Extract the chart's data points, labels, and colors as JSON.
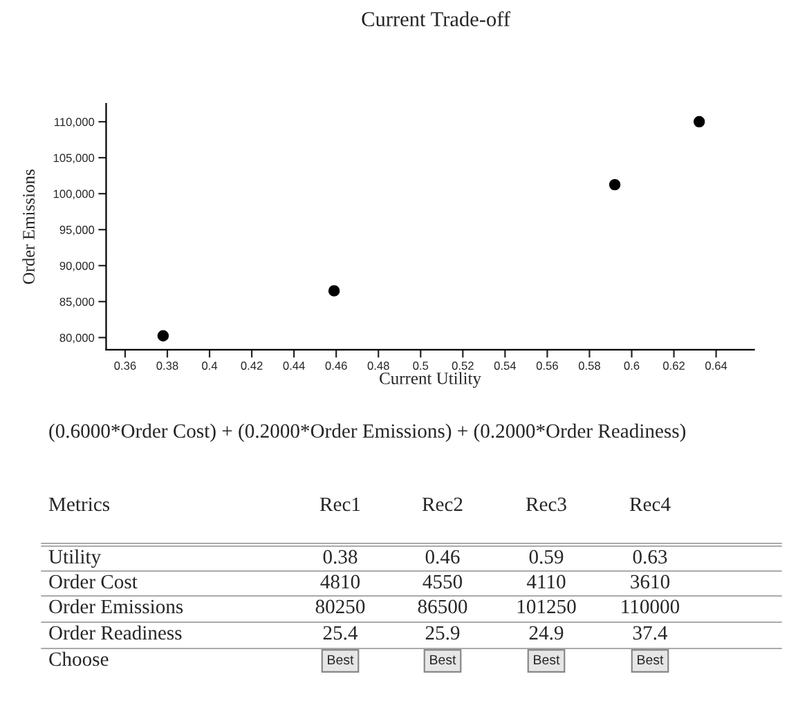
{
  "chart_data": {
    "type": "scatter",
    "title": "Current Trade-off",
    "xlabel": "Current Utility",
    "ylabel": "Order Emissions",
    "x": [
      0.378,
      0.459,
      0.592,
      0.632
    ],
    "values": [
      80250,
      86500,
      101250,
      110000
    ],
    "color": "#000000",
    "marker": "circle",
    "grid": false,
    "legend": false,
    "xlim": [
      0.351,
      0.658
    ],
    "ylim": [
      78300,
      112500
    ],
    "xticks": [
      0.36,
      0.38,
      0.4,
      0.42,
      0.44,
      0.46,
      0.48,
      0.5,
      0.52,
      0.54,
      0.56,
      0.58,
      0.6,
      0.62,
      0.64
    ],
    "yticks": [
      {
        "value": 80000,
        "label": "80,000"
      },
      {
        "value": 85000,
        "label": "85,000"
      },
      {
        "value": 90000,
        "label": "90,000"
      },
      {
        "value": 95000,
        "label": "95,000"
      },
      {
        "value": 100000,
        "label": "100,000"
      },
      {
        "value": 105000,
        "label": "105,000"
      },
      {
        "value": 110000,
        "label": "110,000"
      }
    ],
    "annotations": [
      "(0.6000*Order Cost) + (0.2000*Order Emissions) + (0.2000*Order Readiness)",
      "Metrics",
      "Rec1",
      "Rec2",
      "Rec3",
      "Rec4",
      "Utility",
      "0.38",
      "0.46",
      "0.59",
      "0.63",
      "Order Cost",
      "4810",
      "4550",
      "4110",
      "3610",
      "Order Emissions",
      "80250",
      "86500",
      "101250",
      "110000",
      "Order Readiness",
      "25.4",
      "25.9",
      "24.9",
      "37.4",
      "Choose",
      "Best",
      "Best",
      "Best",
      "Best"
    ]
  }
}
